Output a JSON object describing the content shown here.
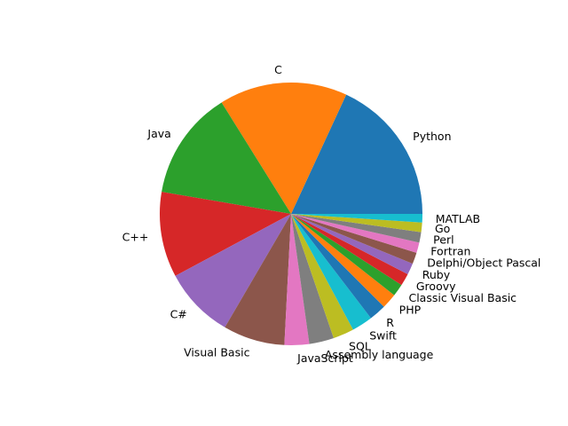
{
  "chart_data": {
    "type": "pie",
    "title": "",
    "start_angle": 0,
    "direction": "counterclockwise",
    "slices": [
      {
        "label": "Python",
        "value": 15.5,
        "color": "#1f77b4"
      },
      {
        "label": "C",
        "value": 13.5,
        "color": "#ff7f0e"
      },
      {
        "label": "Java",
        "value": 11.5,
        "color": "#2ca02c"
      },
      {
        "label": "C++",
        "value": 9.0,
        "color": "#d62728"
      },
      {
        "label": "C#",
        "value": 7.5,
        "color": "#9467bd"
      },
      {
        "label": "Visual Basic",
        "value": 6.5,
        "color": "#8c564b"
      },
      {
        "label": "JavaScript",
        "value": 2.6,
        "color": "#e377c2"
      },
      {
        "label": "Assembly language",
        "value": 2.6,
        "color": "#7f7f7f"
      },
      {
        "label": "SQL",
        "value": 2.2,
        "color": "#bcbd22"
      },
      {
        "label": "Swift",
        "value": 2.2,
        "color": "#17becf"
      },
      {
        "label": "R",
        "value": 1.8,
        "color": "#1f77b4"
      },
      {
        "label": "PHP",
        "value": 1.6,
        "color": "#ff7f0e"
      },
      {
        "label": "Classic Visual Basic",
        "value": 1.3,
        "color": "#2ca02c"
      },
      {
        "label": "Groovy",
        "value": 1.3,
        "color": "#d62728"
      },
      {
        "label": "Ruby",
        "value": 1.2,
        "color": "#9467bd"
      },
      {
        "label": "Delphi/Object Pascal",
        "value": 1.2,
        "color": "#8c564b"
      },
      {
        "label": "Fortran",
        "value": 1.1,
        "color": "#e377c2"
      },
      {
        "label": "Perl",
        "value": 1.1,
        "color": "#7f7f7f"
      },
      {
        "label": "Go",
        "value": 1.0,
        "color": "#bcbd22"
      },
      {
        "label": "MATLAB",
        "value": 0.9,
        "color": "#17becf"
      }
    ]
  }
}
